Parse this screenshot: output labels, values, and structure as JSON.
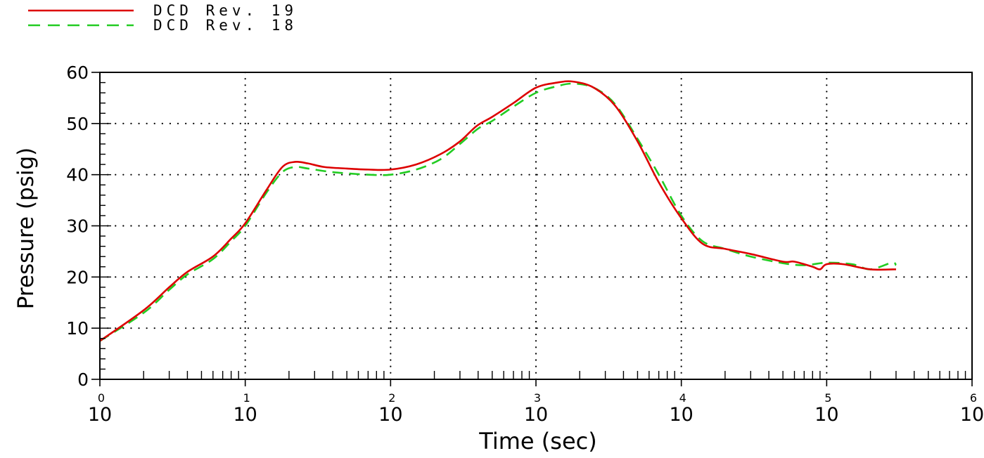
{
  "chart_data": {
    "type": "line",
    "xlabel": "Time (sec)",
    "ylabel": "Pressure (psig)",
    "x_scale": "log",
    "xlim": [
      1,
      1000000
    ],
    "ylim": [
      0,
      60
    ],
    "x_ticks": [
      {
        "value": 1,
        "base": "10",
        "exp": "0"
      },
      {
        "value": 10,
        "base": "10",
        "exp": "1"
      },
      {
        "value": 100,
        "base": "10",
        "exp": "2"
      },
      {
        "value": 1000,
        "base": "10",
        "exp": "3"
      },
      {
        "value": 10000,
        "base": "10",
        "exp": "4"
      },
      {
        "value": 100000,
        "base": "10",
        "exp": "5"
      },
      {
        "value": 1000000,
        "base": "10",
        "exp": "6"
      }
    ],
    "y_ticks": [
      {
        "value": 0,
        "label": "0"
      },
      {
        "value": 10,
        "label": "10"
      },
      {
        "value": 20,
        "label": "20"
      },
      {
        "value": 30,
        "label": "30"
      },
      {
        "value": 40,
        "label": "40"
      },
      {
        "value": 50,
        "label": "50"
      },
      {
        "value": 60,
        "label": "60"
      }
    ],
    "grid": true,
    "legend_position": "top-left",
    "series": [
      {
        "name": "DCD Rev. 19",
        "color": "#dd0000",
        "style": "solid",
        "points": [
          [
            1,
            7.5
          ],
          [
            2,
            13.5
          ],
          [
            3,
            18
          ],
          [
            4,
            21
          ],
          [
            6,
            24
          ],
          [
            8,
            27.5
          ],
          [
            10,
            30.5
          ],
          [
            14,
            37
          ],
          [
            18,
            41.5
          ],
          [
            22,
            42.5
          ],
          [
            27,
            42.2
          ],
          [
            35,
            41.5
          ],
          [
            50,
            41.2
          ],
          [
            70,
            41
          ],
          [
            100,
            41
          ],
          [
            150,
            42
          ],
          [
            220,
            44
          ],
          [
            300,
            46.5
          ],
          [
            390,
            49.5
          ],
          [
            500,
            51.3
          ],
          [
            700,
            54
          ],
          [
            1000,
            57
          ],
          [
            1400,
            58
          ],
          [
            1800,
            58.2
          ],
          [
            2500,
            57
          ],
          [
            3500,
            53.5
          ],
          [
            5000,
            46.5
          ],
          [
            7000,
            38.5
          ],
          [
            10000,
            31.5
          ],
          [
            14000,
            26.5
          ],
          [
            20000,
            25.5
          ],
          [
            30000,
            24.5
          ],
          [
            50000,
            23
          ],
          [
            60000,
            23
          ],
          [
            80000,
            22
          ],
          [
            90000,
            21.5
          ],
          [
            100000,
            22.5
          ],
          [
            130000,
            22.5
          ],
          [
            200000,
            21.5
          ],
          [
            300000,
            21.5
          ]
        ]
      },
      {
        "name": "DCD Rev. 18",
        "color": "#22cc22",
        "style": "dashed",
        "points": [
          [
            1,
            7.5
          ],
          [
            2,
            13
          ],
          [
            3,
            17.5
          ],
          [
            4,
            20.5
          ],
          [
            6,
            23.5
          ],
          [
            8,
            27
          ],
          [
            10,
            30
          ],
          [
            14,
            36.5
          ],
          [
            18,
            40.5
          ],
          [
            22,
            41.5
          ],
          [
            27,
            41.2
          ],
          [
            40,
            40.5
          ],
          [
            70,
            40
          ],
          [
            100,
            40
          ],
          [
            150,
            41
          ],
          [
            220,
            43
          ],
          [
            300,
            46
          ],
          [
            400,
            49
          ],
          [
            500,
            50.5
          ],
          [
            700,
            53.3
          ],
          [
            1000,
            56
          ],
          [
            1400,
            57.3
          ],
          [
            1800,
            57.8
          ],
          [
            2500,
            57
          ],
          [
            3500,
            53.8
          ],
          [
            5000,
            47
          ],
          [
            7000,
            40
          ],
          [
            10000,
            32
          ],
          [
            14000,
            27
          ],
          [
            20000,
            25.5
          ],
          [
            30000,
            24
          ],
          [
            50000,
            22.7
          ],
          [
            70000,
            22.3
          ],
          [
            100000,
            22.8
          ],
          [
            150000,
            22.5
          ],
          [
            200000,
            21.5
          ],
          [
            280000,
            22.8
          ],
          [
            300000,
            22.3
          ]
        ]
      }
    ]
  }
}
